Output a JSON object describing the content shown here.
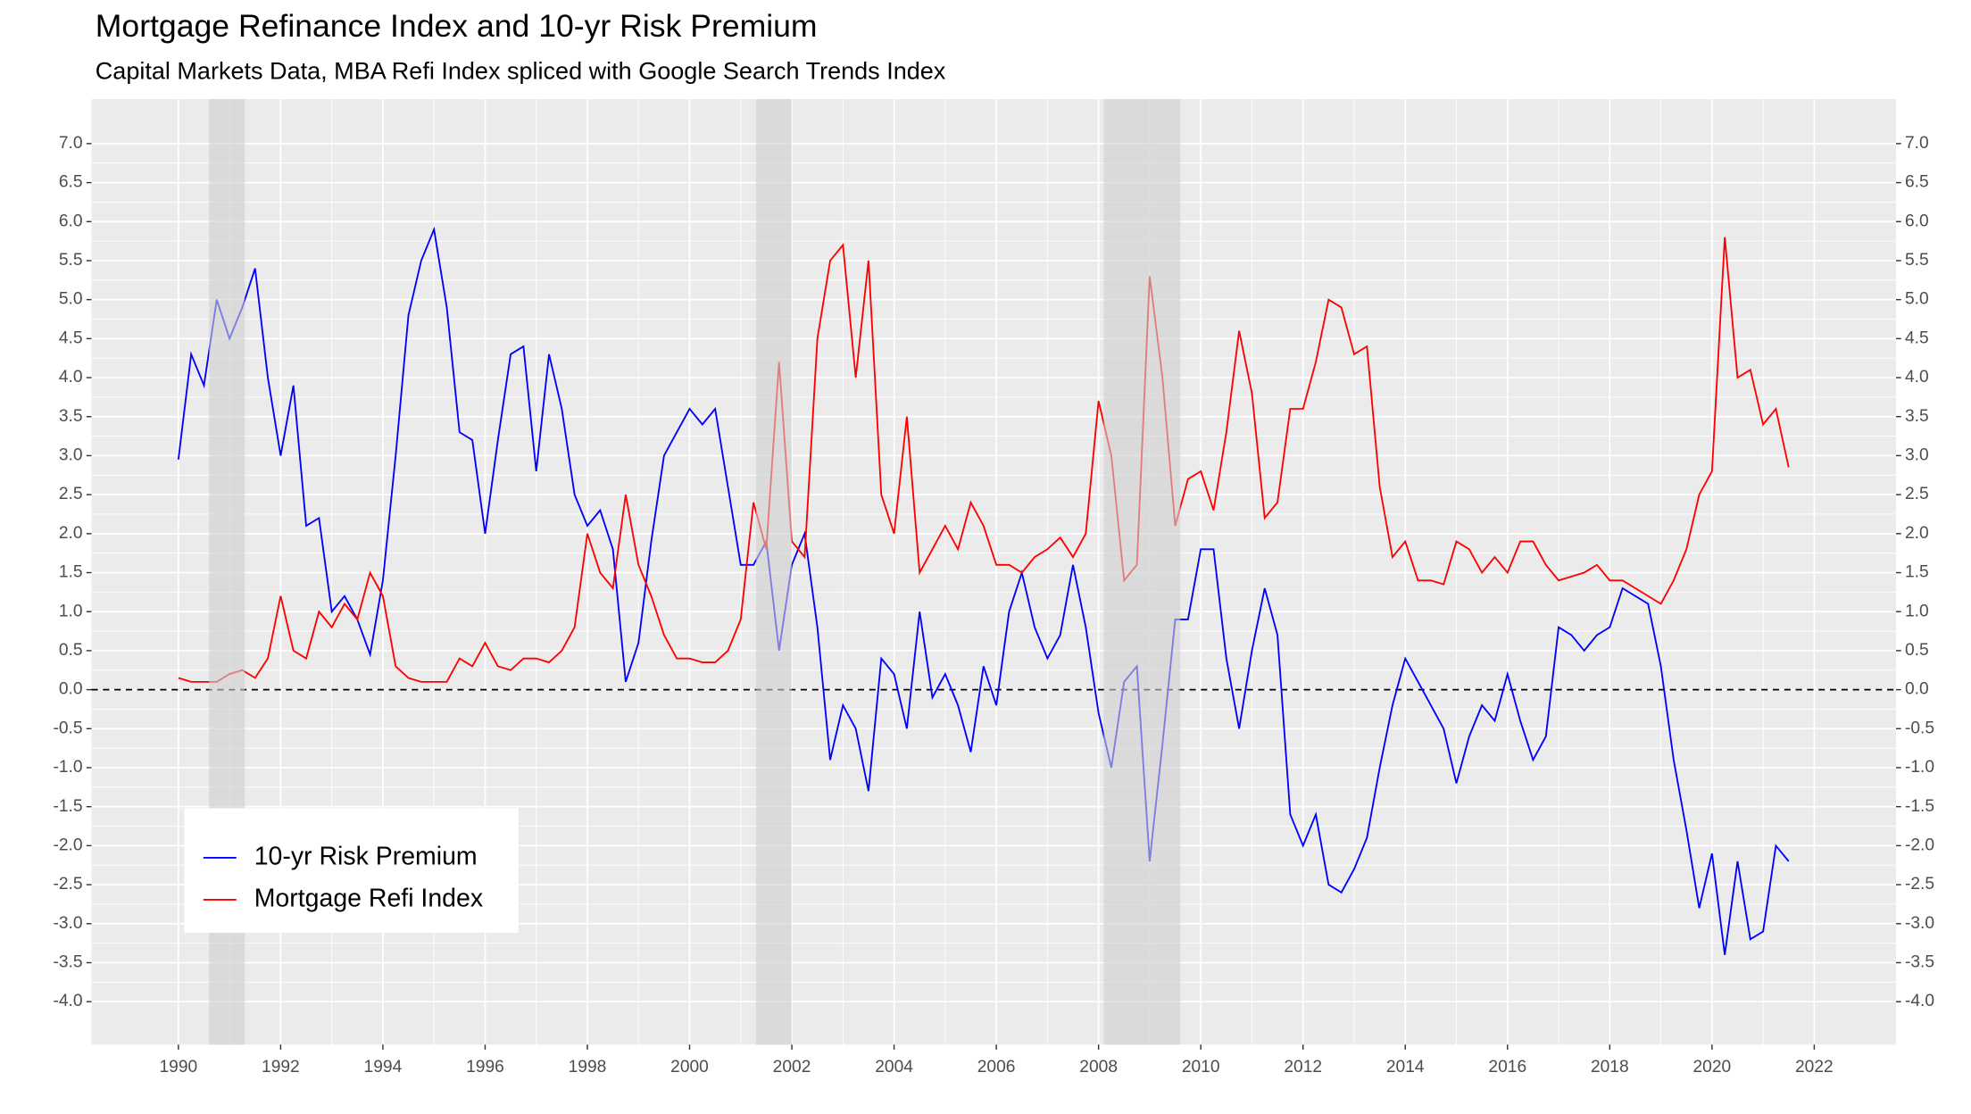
{
  "chart_data": {
    "type": "line",
    "title": "Mortgage Refinance Index and 10-yr Risk Premium",
    "subtitle": "Capital Markets Data, MBA Refi Index spliced with Google Search Trends Index",
    "x": [
      1990,
      1990.25,
      1990.5,
      1990.75,
      1991,
      1991.25,
      1991.5,
      1991.75,
      1992,
      1992.25,
      1992.5,
      1992.75,
      1993,
      1993.25,
      1993.5,
      1993.75,
      1994,
      1994.25,
      1994.5,
      1994.75,
      1995,
      1995.25,
      1995.5,
      1995.75,
      1996,
      1996.25,
      1996.5,
      1996.75,
      1997,
      1997.25,
      1997.5,
      1997.75,
      1998,
      1998.25,
      1998.5,
      1998.75,
      1999,
      1999.25,
      1999.5,
      1999.75,
      2000,
      2000.25,
      2000.5,
      2000.75,
      2001,
      2001.25,
      2001.5,
      2001.75,
      2002,
      2002.25,
      2002.5,
      2002.75,
      2003,
      2003.25,
      2003.5,
      2003.75,
      2004,
      2004.25,
      2004.5,
      2004.75,
      2005,
      2005.25,
      2005.5,
      2005.75,
      2006,
      2006.25,
      2006.5,
      2006.75,
      2007,
      2007.25,
      2007.5,
      2007.75,
      2008,
      2008.25,
      2008.5,
      2008.75,
      2009,
      2009.25,
      2009.5,
      2009.75,
      2010,
      2010.25,
      2010.5,
      2010.75,
      2011,
      2011.25,
      2011.5,
      2011.75,
      2012,
      2012.25,
      2012.5,
      2012.75,
      2013,
      2013.25,
      2013.5,
      2013.75,
      2014,
      2014.25,
      2014.5,
      2014.75,
      2015,
      2015.25,
      2015.5,
      2015.75,
      2016,
      2016.25,
      2016.5,
      2016.75,
      2017,
      2017.25,
      2017.5,
      2017.75,
      2018,
      2018.25,
      2018.5,
      2018.75,
      2019,
      2019.25,
      2019.5,
      2019.75,
      2020,
      2020.25,
      2020.5,
      2020.75,
      2021,
      2021.25,
      2021.5
    ],
    "series": [
      {
        "name": "10-yr Risk Premium",
        "color": "#0000ff",
        "values": [
          2.95,
          4.3,
          3.9,
          5.0,
          4.5,
          4.9,
          5.4,
          4.0,
          3.0,
          3.9,
          2.1,
          2.2,
          1.0,
          1.2,
          0.9,
          0.45,
          1.4,
          3.0,
          4.8,
          5.5,
          5.9,
          4.9,
          3.3,
          3.2,
          2.0,
          3.2,
          4.3,
          4.4,
          2.8,
          4.3,
          3.6,
          2.5,
          2.1,
          2.3,
          1.8,
          0.1,
          0.6,
          1.9,
          3.0,
          3.3,
          3.6,
          3.4,
          3.6,
          2.6,
          1.6,
          1.6,
          1.9,
          0.5,
          1.6,
          2.0,
          0.8,
          -0.9,
          -0.2,
          -0.5,
          -1.3,
          0.4,
          0.2,
          -0.5,
          1.0,
          -0.1,
          0.2,
          -0.2,
          -0.8,
          0.3,
          -0.2,
          1.0,
          1.5,
          0.8,
          0.4,
          0.7,
          1.6,
          0.8,
          -0.3,
          -1.0,
          0.1,
          0.3,
          -2.2,
          -0.7,
          0.9,
          0.9,
          1.8,
          1.8,
          0.4,
          -0.5,
          0.5,
          1.3,
          0.7,
          -1.6,
          -2.0,
          -1.6,
          -2.5,
          -2.6,
          -2.3,
          -1.9,
          -1.0,
          -0.2,
          0.4,
          0.1,
          -0.2,
          -0.5,
          -1.2,
          -0.6,
          -0.2,
          -0.4,
          0.2,
          -0.4,
          -0.9,
          -0.6,
          0.8,
          0.7,
          0.5,
          0.7,
          0.8,
          1.3,
          1.2,
          1.1,
          0.3,
          -0.9,
          -1.8,
          -2.8,
          -2.1,
          -3.4,
          -2.2,
          -3.2,
          -3.1,
          -2.0,
          -2.2
        ]
      },
      {
        "name": "Mortgage Refi Index",
        "color": "#ff0000",
        "values": [
          0.15,
          0.1,
          0.1,
          0.1,
          0.2,
          0.25,
          0.15,
          0.4,
          1.2,
          0.5,
          0.4,
          1.0,
          0.8,
          1.1,
          0.9,
          1.5,
          1.2,
          0.3,
          0.15,
          0.1,
          0.1,
          0.1,
          0.4,
          0.3,
          0.6,
          0.3,
          0.25,
          0.4,
          0.4,
          0.35,
          0.5,
          0.8,
          2.0,
          1.5,
          1.3,
          2.5,
          1.6,
          1.2,
          0.7,
          0.4,
          0.4,
          0.35,
          0.35,
          0.5,
          0.9,
          2.4,
          1.8,
          4.2,
          1.9,
          1.7,
          4.5,
          5.5,
          5.7,
          4.0,
          5.5,
          2.5,
          2.0,
          3.5,
          1.5,
          1.8,
          2.1,
          1.8,
          2.4,
          2.1,
          1.6,
          1.6,
          1.5,
          1.7,
          1.8,
          1.95,
          1.7,
          2.0,
          3.7,
          3.0,
          1.4,
          1.6,
          5.3,
          4.0,
          2.1,
          2.7,
          2.8,
          2.3,
          3.3,
          4.6,
          3.8,
          2.2,
          2.4,
          3.6,
          3.6,
          4.2,
          5.0,
          4.9,
          4.3,
          4.4,
          2.6,
          1.7,
          1.9,
          1.4,
          1.4,
          1.35,
          1.9,
          1.8,
          1.5,
          1.7,
          1.5,
          1.9,
          1.9,
          1.6,
          1.4,
          1.45,
          1.5,
          1.6,
          1.4,
          1.4,
          1.3,
          1.2,
          1.1,
          1.4,
          1.8,
          2.5,
          2.8,
          5.8,
          4.0,
          4.1,
          3.4,
          3.6,
          2.85
        ]
      }
    ],
    "recessions": [
      [
        1990.6,
        1991.3
      ],
      [
        2001.3,
        2002.0
      ],
      [
        2008.1,
        2009.6
      ]
    ],
    "hline": 0,
    "xlim": [
      1988.3,
      2023.6
    ],
    "xticks": [
      1990,
      1992,
      1994,
      1996,
      1998,
      2000,
      2002,
      2004,
      2006,
      2008,
      2010,
      2012,
      2014,
      2016,
      2018,
      2020,
      2022
    ],
    "ylim": [
      -4.55,
      7.57
    ],
    "yticks": [
      {
        "value": -4,
        "label": "-4.0"
      },
      -3.5,
      {
        "value": -3,
        "label": "-3.0"
      },
      -2.5,
      {
        "value": -2,
        "label": "-2.0"
      },
      -1.5,
      {
        "value": -1,
        "label": "-1.0"
      },
      -0.5,
      {
        "value": 0,
        "label": "0.0"
      },
      0.5,
      {
        "value": 1,
        "label": "1.0"
      },
      1.5,
      {
        "value": 2,
        "label": "2.0"
      },
      2.5,
      {
        "value": 3,
        "label": "3.0"
      },
      3.5,
      {
        "value": 4,
        "label": "4.0"
      },
      4.5,
      {
        "value": 5,
        "label": "5.0"
      },
      5.5,
      {
        "value": 6,
        "label": "6.0"
      },
      6.5,
      {
        "value": 7,
        "label": "7.0"
      }
    ],
    "grid": true,
    "legend": "bottom-left"
  }
}
